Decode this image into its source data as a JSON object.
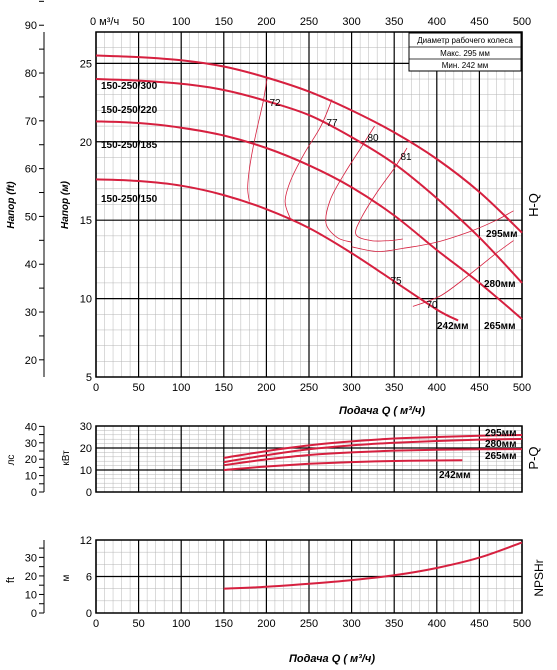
{
  "colors": {
    "curve": "#d6203f",
    "grid_major": "#000000",
    "grid_minor": "#b5b5b5",
    "box_fill": "#ffffff"
  },
  "chart_data": [
    {
      "type": "line",
      "id": "hq",
      "side_label": "H-Q",
      "xlabel": "Подача Q ( м³/ч)",
      "ylabel_left": "Напор (м)",
      "ylabel_outer": "Напор (ft)",
      "top_axis_label": "0 м³/ч",
      "xlim": [
        0,
        500
      ],
      "ylim": [
        5,
        27
      ],
      "x_ticks": [
        0,
        50,
        100,
        150,
        200,
        250,
        300,
        350,
        400,
        450,
        500
      ],
      "top_ticks": [
        0,
        50,
        100,
        150,
        200,
        250,
        300,
        350,
        400,
        450,
        500
      ],
      "y_ticks": [
        5,
        10,
        15,
        20,
        25
      ],
      "ft_ticks": [
        20,
        30,
        40,
        50,
        60,
        70,
        80,
        90
      ],
      "legend_box": {
        "title": "Диаметр рабочего колеса",
        "max": "Макс. 295 мм",
        "min": "Мин.  242 мм"
      },
      "curve_labels": [
        "150-250/300",
        "150-250/220",
        "150-250/185",
        "150-250/150"
      ],
      "series": [
        {
          "name": "295мм",
          "x": [
            0,
            50,
            100,
            150,
            200,
            250,
            300,
            350,
            400,
            450,
            500
          ],
          "y": [
            25.5,
            25.4,
            25.2,
            24.8,
            24.1,
            23.2,
            22.0,
            20.6,
            18.9,
            16.8,
            14.2
          ]
        },
        {
          "name": "280мм",
          "x": [
            0,
            50,
            100,
            150,
            200,
            250,
            300,
            350,
            400,
            450,
            500
          ],
          "y": [
            24.0,
            23.9,
            23.7,
            23.3,
            22.6,
            21.7,
            20.3,
            18.6,
            16.4,
            13.9,
            11.0
          ]
        },
        {
          "name": "265мм",
          "x": [
            0,
            50,
            100,
            150,
            200,
            250,
            300,
            350,
            400,
            450,
            500
          ],
          "y": [
            21.3,
            21.2,
            20.9,
            20.4,
            19.6,
            18.5,
            17.1,
            15.3,
            13.1,
            11.0,
            8.7
          ]
        },
        {
          "name": "242мм",
          "x": [
            0,
            50,
            100,
            150,
            200,
            250,
            300,
            350,
            400,
            425
          ],
          "y": [
            17.6,
            17.5,
            17.2,
            16.6,
            15.7,
            14.5,
            12.9,
            11.1,
            9.3,
            8.6
          ]
        }
      ],
      "efficiency_labels": [
        "72",
        "77",
        "80",
        "81",
        "75",
        "70"
      ],
      "efficiency_curves": [
        {
          "label": "72",
          "x": [
            201,
            196,
            188,
            181,
            178,
            180
          ],
          "y": [
            24.1,
            22.5,
            20.6,
            18.6,
            17.1,
            16.2
          ]
        },
        {
          "label": "77",
          "x": [
            277,
            264,
            245,
            229,
            222,
            228
          ],
          "y": [
            22.7,
            21.0,
            19.3,
            17.6,
            16.2,
            15.1
          ]
        },
        {
          "label": "80",
          "x": [
            327,
            312,
            292,
            275,
            270,
            283,
            300
          ],
          "y": [
            21.0,
            19.7,
            18.0,
            16.3,
            14.8,
            13.9,
            13.6
          ]
        },
        {
          "label": "81",
          "x": [
            365,
            350,
            330,
            312,
            305,
            323,
            345,
            360
          ],
          "y": [
            19.6,
            18.3,
            16.8,
            15.2,
            14.1,
            13.7,
            13.7,
            13.8
          ]
        },
        {
          "label": "75",
          "x": [
            300,
            330,
            360,
            400,
            440,
            470,
            490
          ],
          "y": [
            13.3,
            13.0,
            13.2,
            13.6,
            14.3,
            15.0,
            15.6
          ]
        },
        {
          "label": "70",
          "x": [
            372,
            405,
            440,
            470,
            490
          ],
          "y": [
            9.5,
            10.2,
            11.6,
            12.9,
            13.7
          ]
        }
      ]
    },
    {
      "type": "line",
      "id": "pq",
      "side_label": "P-Q",
      "ylabel_left": "кВт",
      "ylabel_outer": "лс",
      "xlim": [
        0,
        500
      ],
      "ylim": [
        0,
        30
      ],
      "y_ticks": [
        0,
        10,
        20,
        30
      ],
      "hp_ticks": [
        0,
        10,
        20,
        30,
        40
      ],
      "series": [
        {
          "name": "295мм",
          "x": [
            150,
            200,
            250,
            300,
            350,
            400,
            450,
            500
          ],
          "y": [
            15.5,
            18.6,
            21.2,
            23.0,
            24.3,
            25.0,
            25.6,
            25.9
          ]
        },
        {
          "name": "280мм",
          "x": [
            150,
            200,
            250,
            300,
            350,
            400,
            450,
            500
          ],
          "y": [
            13.6,
            16.7,
            19.4,
            21.2,
            22.4,
            23.2,
            23.8,
            24.1
          ]
        },
        {
          "name": "265мм",
          "x": [
            150,
            200,
            250,
            300,
            350,
            400,
            450,
            500
          ],
          "y": [
            12.2,
            14.8,
            16.8,
            18.0,
            18.8,
            19.2,
            19.4,
            19.5
          ]
        },
        {
          "name": "242мм",
          "x": [
            150,
            200,
            250,
            300,
            350,
            400,
            430
          ],
          "y": [
            10.0,
            11.6,
            12.8,
            13.6,
            14.1,
            14.3,
            14.4
          ]
        }
      ]
    },
    {
      "type": "line",
      "id": "npsh",
      "side_label": "NPSHr",
      "xlabel": "Подача Q ( м³/ч)",
      "ylabel_left": "м",
      "ylabel_outer": "ft",
      "xlim": [
        0,
        500
      ],
      "ylim": [
        0,
        12
      ],
      "x_ticks": [
        0,
        50,
        100,
        150,
        200,
        250,
        300,
        350,
        400,
        450,
        500
      ],
      "y_ticks": [
        0,
        6,
        12
      ],
      "ft_ticks": [
        0,
        10,
        20,
        30
      ],
      "series": [
        {
          "name": "NPSHr",
          "x": [
            150,
            200,
            250,
            300,
            350,
            400,
            450,
            500
          ],
          "y": [
            4.0,
            4.3,
            4.8,
            5.4,
            6.2,
            7.4,
            9.1,
            11.6
          ]
        }
      ]
    }
  ]
}
